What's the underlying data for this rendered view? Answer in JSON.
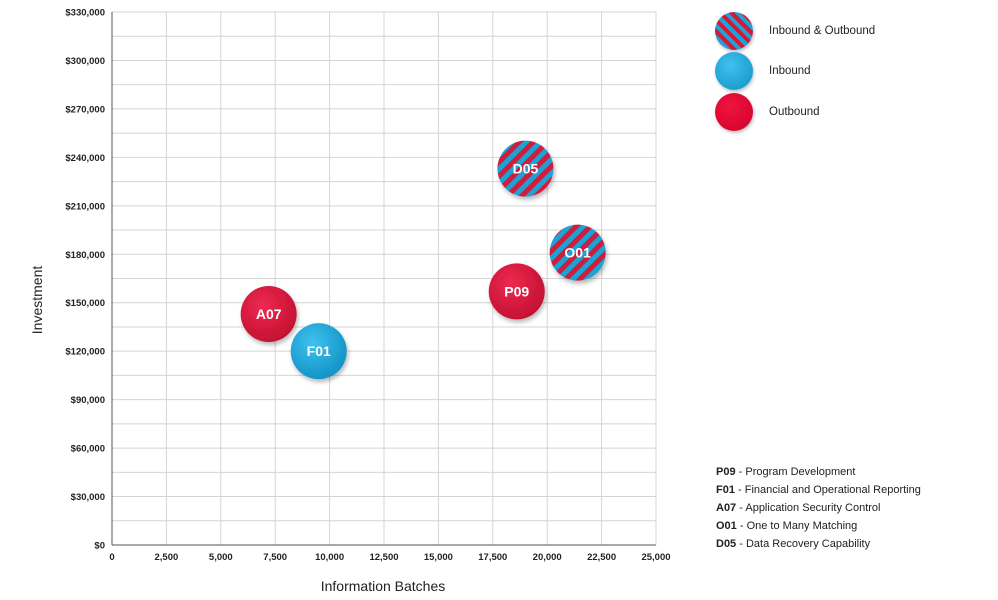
{
  "chart_data": {
    "type": "scatter",
    "xlabel": "Information Batches",
    "ylabel": "Investment",
    "xlim": [
      0,
      25000
    ],
    "ylim": [
      0,
      330000
    ],
    "x_ticks": [
      0,
      2500,
      5000,
      7500,
      10000,
      12500,
      15000,
      17500,
      20000,
      22500,
      25000
    ],
    "x_tick_labels": [
      "0",
      "2,500",
      "5,000",
      "7,500",
      "10,000",
      "12,500",
      "15,000",
      "17,500",
      "20,000",
      "22,500",
      "25,000"
    ],
    "y_ticks": [
      0,
      30000,
      60000,
      90000,
      120000,
      150000,
      180000,
      210000,
      240000,
      270000,
      300000,
      330000
    ],
    "y_tick_labels": [
      "$0",
      "$30,000",
      "$60,000",
      "$90,000",
      "$120,000",
      "$150,000",
      "$180,000",
      "$210,000",
      "$240,000",
      "$270,000",
      "$300,000",
      "$330,000"
    ],
    "grid": true,
    "legend_position": "top-right",
    "categories": [
      {
        "name": "Inbound & Outbound",
        "style": "striped",
        "colors": [
          "#1fa3d6",
          "#d11a3a"
        ]
      },
      {
        "name": "Inbound",
        "style": "solid",
        "colors": [
          "#1aa8dc"
        ]
      },
      {
        "name": "Outbound",
        "style": "solid",
        "colors": [
          "#e4002b"
        ]
      }
    ],
    "points": [
      {
        "label": "D05",
        "x": 19000,
        "y": 233000,
        "category": "Inbound & Outbound"
      },
      {
        "label": "O01",
        "x": 21400,
        "y": 181000,
        "category": "Inbound & Outbound"
      },
      {
        "label": "P09",
        "x": 18600,
        "y": 157000,
        "category": "Outbound"
      },
      {
        "label": "A07",
        "x": 7200,
        "y": 143000,
        "category": "Outbound"
      },
      {
        "label": "F01",
        "x": 9500,
        "y": 120000,
        "category": "Inbound"
      }
    ]
  },
  "code_legend": [
    {
      "code": "P09",
      "description": "Program Development"
    },
    {
      "code": "F01",
      "description": "Financial and Operational Reporting"
    },
    {
      "code": "A07",
      "description": "Application Security Control"
    },
    {
      "code": "O01",
      "description": "One to Many Matching"
    },
    {
      "code": "D05",
      "description": "Data Recovery Capability"
    }
  ]
}
